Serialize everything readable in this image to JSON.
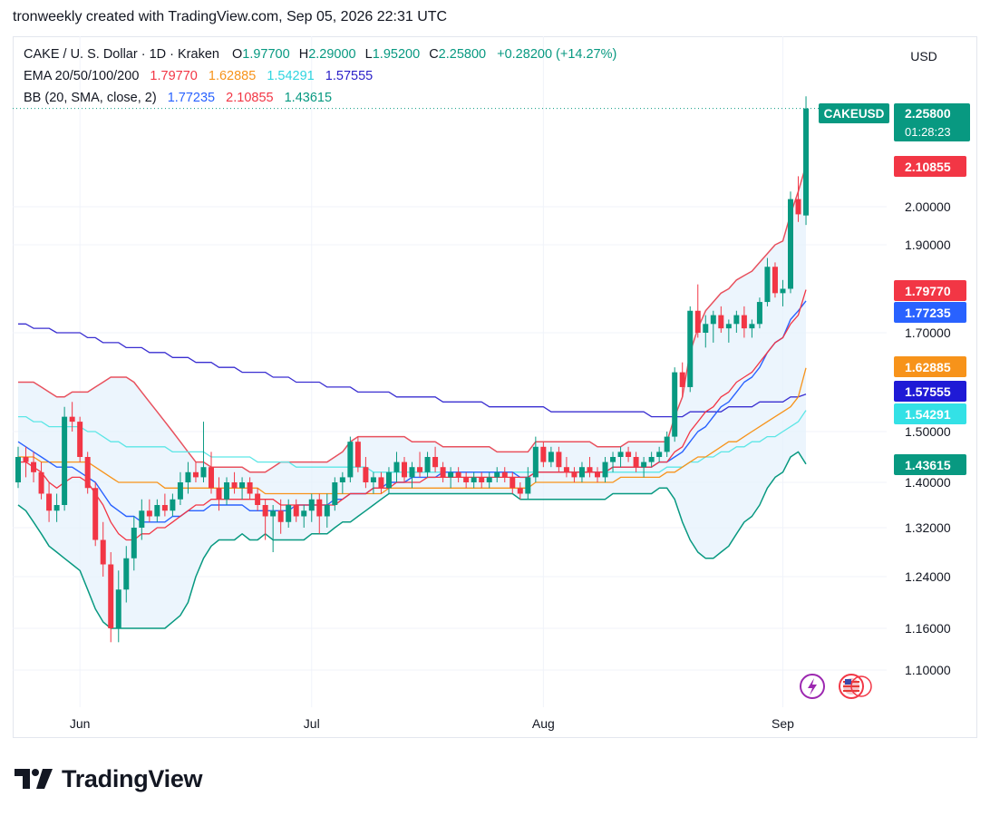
{
  "header": {
    "attribution": "tronweekly created with TradingView.com, Sep 05, 2026 22:31 UTC"
  },
  "legend": {
    "symbol_line": "CAKE / U. S. Dollar · 1D · Kraken",
    "ohlc": [
      {
        "label": "O",
        "value": "1.97700"
      },
      {
        "label": "H",
        "value": "2.29000"
      },
      {
        "label": "L",
        "value": "1.95200"
      },
      {
        "label": "C",
        "value": "2.25800"
      }
    ],
    "change": "+0.28200 (+14.27%)",
    "ema_label": "EMA 20/50/100/200",
    "ema_values": [
      "1.79770",
      "1.62885",
      "1.54291",
      "1.57555"
    ],
    "bb_label": "BB (20, SMA, close, 2)",
    "bb_values": [
      "1.77235",
      "2.10855",
      "1.43615"
    ]
  },
  "currency_button": "USD",
  "branding": "TradingView",
  "colors": {
    "up": "#089981",
    "down": "#f23645",
    "ema20": "#f23645",
    "ema50": "#f7931a",
    "ema100": "#5ce6e6",
    "ema200": "#3a2fd1",
    "bb_basis": "#2962ff",
    "bb_upper": "#e8515e",
    "bb_lower": "#089981",
    "bb_fill": "#e6f2fc"
  },
  "chart_data": {
    "type": "candlestick",
    "symbol": "CAKEUSD",
    "interval": "1D",
    "x_labels": [
      "Jun",
      "Jul",
      "Aug",
      "Sep"
    ],
    "y_ticks": [
      "2.00000",
      "1.90000",
      "1.70000",
      "1.50000",
      "1.40000",
      "1.32000",
      "1.24000",
      "1.16000",
      "1.10000"
    ],
    "ylim": [
      1.06,
      2.32
    ],
    "price_tags": [
      {
        "name": "CAKEUSD",
        "value": "2.25800",
        "sub": "01:28:23",
        "color": "#089981"
      },
      {
        "value": "2.10855",
        "color": "#f23645"
      },
      {
        "value": "1.79770",
        "color": "#f23645"
      },
      {
        "value": "1.77235",
        "color": "#2962ff"
      },
      {
        "value": "1.62885",
        "color": "#f7931a"
      },
      {
        "value": "1.57555",
        "color": "#1f1ad6"
      },
      {
        "value": "1.54291",
        "color": "#33e1e6"
      },
      {
        "value": "1.43615",
        "color": "#089981"
      }
    ],
    "last_price": 2.258,
    "ohlc": [
      [
        1.4,
        1.47,
        1.39,
        1.45
      ],
      [
        1.45,
        1.47,
        1.41,
        1.44
      ],
      [
        1.44,
        1.46,
        1.4,
        1.42
      ],
      [
        1.42,
        1.44,
        1.37,
        1.38
      ],
      [
        1.38,
        1.4,
        1.33,
        1.35
      ],
      [
        1.35,
        1.38,
        1.33,
        1.36
      ],
      [
        1.36,
        1.55,
        1.35,
        1.53
      ],
      [
        1.53,
        1.56,
        1.5,
        1.52
      ],
      [
        1.52,
        1.53,
        1.44,
        1.45
      ],
      [
        1.45,
        1.46,
        1.38,
        1.39
      ],
      [
        1.39,
        1.4,
        1.29,
        1.3
      ],
      [
        1.3,
        1.33,
        1.24,
        1.26
      ],
      [
        1.26,
        1.28,
        1.14,
        1.16
      ],
      [
        1.16,
        1.25,
        1.14,
        1.22
      ],
      [
        1.22,
        1.29,
        1.2,
        1.27
      ],
      [
        1.27,
        1.34,
        1.25,
        1.32
      ],
      [
        1.32,
        1.37,
        1.3,
        1.35
      ],
      [
        1.35,
        1.37,
        1.33,
        1.34
      ],
      [
        1.34,
        1.37,
        1.33,
        1.36
      ],
      [
        1.36,
        1.38,
        1.34,
        1.35
      ],
      [
        1.35,
        1.38,
        1.34,
        1.37
      ],
      [
        1.37,
        1.42,
        1.36,
        1.4
      ],
      [
        1.4,
        1.44,
        1.38,
        1.42
      ],
      [
        1.42,
        1.44,
        1.4,
        1.41
      ],
      [
        1.41,
        1.52,
        1.4,
        1.43
      ],
      [
        1.43,
        1.46,
        1.38,
        1.39
      ],
      [
        1.39,
        1.41,
        1.35,
        1.37
      ],
      [
        1.37,
        1.41,
        1.36,
        1.4
      ],
      [
        1.4,
        1.42,
        1.38,
        1.39
      ],
      [
        1.39,
        1.41,
        1.37,
        1.4
      ],
      [
        1.4,
        1.41,
        1.37,
        1.38
      ],
      [
        1.38,
        1.39,
        1.35,
        1.36
      ],
      [
        1.36,
        1.37,
        1.3,
        1.34
      ],
      [
        1.34,
        1.36,
        1.28,
        1.35
      ],
      [
        1.35,
        1.37,
        1.31,
        1.33
      ],
      [
        1.33,
        1.37,
        1.32,
        1.36
      ],
      [
        1.36,
        1.37,
        1.33,
        1.34
      ],
      [
        1.34,
        1.36,
        1.32,
        1.35
      ],
      [
        1.35,
        1.38,
        1.33,
        1.37
      ],
      [
        1.37,
        1.38,
        1.31,
        1.34
      ],
      [
        1.34,
        1.38,
        1.32,
        1.36
      ],
      [
        1.36,
        1.41,
        1.35,
        1.4
      ],
      [
        1.4,
        1.42,
        1.38,
        1.41
      ],
      [
        1.41,
        1.49,
        1.4,
        1.48
      ],
      [
        1.48,
        1.49,
        1.42,
        1.43
      ],
      [
        1.43,
        1.45,
        1.39,
        1.4
      ],
      [
        1.4,
        1.42,
        1.38,
        1.41
      ],
      [
        1.41,
        1.42,
        1.38,
        1.39
      ],
      [
        1.39,
        1.43,
        1.38,
        1.42
      ],
      [
        1.42,
        1.46,
        1.4,
        1.44
      ],
      [
        1.44,
        1.45,
        1.4,
        1.41
      ],
      [
        1.41,
        1.44,
        1.39,
        1.43
      ],
      [
        1.43,
        1.46,
        1.41,
        1.42
      ],
      [
        1.42,
        1.46,
        1.41,
        1.45
      ],
      [
        1.45,
        1.47,
        1.42,
        1.43
      ],
      [
        1.43,
        1.44,
        1.4,
        1.41
      ],
      [
        1.41,
        1.43,
        1.39,
        1.42
      ],
      [
        1.42,
        1.43,
        1.4,
        1.41
      ],
      [
        1.41,
        1.42,
        1.39,
        1.4
      ],
      [
        1.4,
        1.42,
        1.39,
        1.41
      ],
      [
        1.41,
        1.42,
        1.39,
        1.4
      ],
      [
        1.4,
        1.42,
        1.39,
        1.41
      ],
      [
        1.41,
        1.43,
        1.4,
        1.42
      ],
      [
        1.42,
        1.43,
        1.4,
        1.41
      ],
      [
        1.41,
        1.42,
        1.38,
        1.39
      ],
      [
        1.39,
        1.4,
        1.37,
        1.38
      ],
      [
        1.38,
        1.43,
        1.37,
        1.41
      ],
      [
        1.41,
        1.49,
        1.4,
        1.47
      ],
      [
        1.47,
        1.48,
        1.43,
        1.44
      ],
      [
        1.44,
        1.47,
        1.43,
        1.46
      ],
      [
        1.46,
        1.47,
        1.42,
        1.43
      ],
      [
        1.43,
        1.45,
        1.41,
        1.42
      ],
      [
        1.42,
        1.43,
        1.4,
        1.41
      ],
      [
        1.41,
        1.44,
        1.4,
        1.43
      ],
      [
        1.43,
        1.45,
        1.41,
        1.42
      ],
      [
        1.42,
        1.43,
        1.4,
        1.41
      ],
      [
        1.41,
        1.45,
        1.4,
        1.44
      ],
      [
        1.44,
        1.46,
        1.42,
        1.45
      ],
      [
        1.45,
        1.47,
        1.43,
        1.46
      ],
      [
        1.46,
        1.47,
        1.44,
        1.45
      ],
      [
        1.45,
        1.46,
        1.42,
        1.43
      ],
      [
        1.43,
        1.45,
        1.41,
        1.44
      ],
      [
        1.44,
        1.46,
        1.43,
        1.45
      ],
      [
        1.45,
        1.47,
        1.44,
        1.46
      ],
      [
        1.46,
        1.5,
        1.45,
        1.49
      ],
      [
        1.49,
        1.63,
        1.48,
        1.62
      ],
      [
        1.62,
        1.64,
        1.57,
        1.59
      ],
      [
        1.59,
        1.76,
        1.58,
        1.75
      ],
      [
        1.75,
        1.81,
        1.69,
        1.7
      ],
      [
        1.7,
        1.74,
        1.67,
        1.72
      ],
      [
        1.72,
        1.75,
        1.68,
        1.74
      ],
      [
        1.74,
        1.76,
        1.7,
        1.71
      ],
      [
        1.71,
        1.73,
        1.68,
        1.72
      ],
      [
        1.72,
        1.75,
        1.7,
        1.74
      ],
      [
        1.74,
        1.76,
        1.69,
        1.71
      ],
      [
        1.71,
        1.73,
        1.69,
        1.72
      ],
      [
        1.72,
        1.78,
        1.71,
        1.77
      ],
      [
        1.77,
        1.87,
        1.76,
        1.85
      ],
      [
        1.85,
        1.86,
        1.78,
        1.79
      ],
      [
        1.79,
        1.82,
        1.76,
        1.8
      ],
      [
        1.8,
        2.04,
        1.79,
        2.02
      ],
      [
        2.02,
        2.08,
        1.96,
        1.98
      ],
      [
        1.977,
        2.29,
        1.952,
        2.258
      ]
    ],
    "ema20": [
      1.44,
      1.44,
      1.43,
      1.42,
      1.4,
      1.39,
      1.4,
      1.41,
      1.41,
      1.4,
      1.38,
      1.36,
      1.33,
      1.31,
      1.3,
      1.3,
      1.31,
      1.31,
      1.32,
      1.32,
      1.33,
      1.34,
      1.35,
      1.36,
      1.36,
      1.37,
      1.37,
      1.37,
      1.37,
      1.37,
      1.37,
      1.37,
      1.37,
      1.37,
      1.36,
      1.36,
      1.36,
      1.36,
      1.36,
      1.36,
      1.36,
      1.36,
      1.37,
      1.38,
      1.38,
      1.38,
      1.39,
      1.39,
      1.39,
      1.4,
      1.4,
      1.4,
      1.4,
      1.41,
      1.41,
      1.41,
      1.41,
      1.41,
      1.41,
      1.41,
      1.41,
      1.41,
      1.41,
      1.41,
      1.41,
      1.41,
      1.41,
      1.42,
      1.42,
      1.42,
      1.42,
      1.42,
      1.42,
      1.42,
      1.42,
      1.42,
      1.42,
      1.43,
      1.43,
      1.43,
      1.43,
      1.43,
      1.43,
      1.44,
      1.44,
      1.46,
      1.47,
      1.5,
      1.52,
      1.54,
      1.55,
      1.57,
      1.58,
      1.6,
      1.61,
      1.62,
      1.64,
      1.66,
      1.68,
      1.69,
      1.72,
      1.74,
      1.7977
    ],
    "ema50": [
      1.45,
      1.45,
      1.45,
      1.44,
      1.44,
      1.44,
      1.44,
      1.44,
      1.44,
      1.44,
      1.43,
      1.42,
      1.41,
      1.4,
      1.4,
      1.4,
      1.4,
      1.4,
      1.4,
      1.39,
      1.39,
      1.39,
      1.39,
      1.39,
      1.39,
      1.39,
      1.39,
      1.39,
      1.39,
      1.39,
      1.39,
      1.39,
      1.38,
      1.38,
      1.38,
      1.38,
      1.38,
      1.38,
      1.38,
      1.38,
      1.38,
      1.38,
      1.38,
      1.38,
      1.38,
      1.38,
      1.38,
      1.38,
      1.39,
      1.39,
      1.39,
      1.39,
      1.39,
      1.39,
      1.39,
      1.39,
      1.39,
      1.39,
      1.39,
      1.39,
      1.39,
      1.39,
      1.39,
      1.39,
      1.39,
      1.39,
      1.39,
      1.4,
      1.4,
      1.4,
      1.4,
      1.4,
      1.4,
      1.4,
      1.4,
      1.4,
      1.4,
      1.4,
      1.41,
      1.41,
      1.41,
      1.41,
      1.41,
      1.41,
      1.42,
      1.42,
      1.43,
      1.44,
      1.45,
      1.45,
      1.46,
      1.47,
      1.48,
      1.48,
      1.49,
      1.5,
      1.51,
      1.52,
      1.53,
      1.54,
      1.55,
      1.57,
      1.62885
    ],
    "ema100": [
      1.53,
      1.53,
      1.52,
      1.52,
      1.51,
      1.51,
      1.51,
      1.51,
      1.51,
      1.5,
      1.5,
      1.49,
      1.48,
      1.48,
      1.47,
      1.47,
      1.47,
      1.47,
      1.47,
      1.47,
      1.46,
      1.46,
      1.46,
      1.46,
      1.46,
      1.45,
      1.45,
      1.45,
      1.45,
      1.45,
      1.45,
      1.44,
      1.44,
      1.44,
      1.44,
      1.44,
      1.43,
      1.43,
      1.43,
      1.43,
      1.43,
      1.43,
      1.43,
      1.43,
      1.43,
      1.43,
      1.42,
      1.42,
      1.42,
      1.42,
      1.42,
      1.42,
      1.42,
      1.42,
      1.42,
      1.42,
      1.42,
      1.42,
      1.42,
      1.42,
      1.42,
      1.42,
      1.42,
      1.42,
      1.42,
      1.42,
      1.42,
      1.42,
      1.42,
      1.42,
      1.42,
      1.42,
      1.42,
      1.42,
      1.42,
      1.42,
      1.42,
      1.42,
      1.42,
      1.42,
      1.42,
      1.42,
      1.42,
      1.42,
      1.43,
      1.43,
      1.43,
      1.44,
      1.44,
      1.45,
      1.45,
      1.46,
      1.46,
      1.47,
      1.47,
      1.48,
      1.48,
      1.49,
      1.49,
      1.5,
      1.51,
      1.52,
      1.54291
    ],
    "ema200": [
      1.72,
      1.72,
      1.71,
      1.71,
      1.71,
      1.7,
      1.7,
      1.7,
      1.7,
      1.69,
      1.69,
      1.68,
      1.68,
      1.68,
      1.67,
      1.67,
      1.67,
      1.66,
      1.66,
      1.66,
      1.65,
      1.65,
      1.65,
      1.64,
      1.64,
      1.64,
      1.63,
      1.63,
      1.63,
      1.62,
      1.62,
      1.62,
      1.62,
      1.61,
      1.61,
      1.61,
      1.6,
      1.6,
      1.6,
      1.6,
      1.59,
      1.59,
      1.59,
      1.59,
      1.58,
      1.58,
      1.58,
      1.58,
      1.58,
      1.57,
      1.57,
      1.57,
      1.57,
      1.57,
      1.57,
      1.56,
      1.56,
      1.56,
      1.56,
      1.56,
      1.56,
      1.55,
      1.55,
      1.55,
      1.55,
      1.55,
      1.55,
      1.55,
      1.55,
      1.54,
      1.54,
      1.54,
      1.54,
      1.54,
      1.54,
      1.54,
      1.54,
      1.54,
      1.54,
      1.54,
      1.54,
      1.54,
      1.53,
      1.53,
      1.53,
      1.53,
      1.53,
      1.54,
      1.54,
      1.54,
      1.54,
      1.54,
      1.55,
      1.55,
      1.55,
      1.55,
      1.56,
      1.56,
      1.56,
      1.56,
      1.57,
      1.57,
      1.57555
    ],
    "bb_basis": [
      1.48,
      1.47,
      1.46,
      1.45,
      1.44,
      1.43,
      1.43,
      1.43,
      1.42,
      1.41,
      1.4,
      1.38,
      1.36,
      1.35,
      1.34,
      1.34,
      1.33,
      1.33,
      1.33,
      1.33,
      1.34,
      1.34,
      1.35,
      1.35,
      1.35,
      1.36,
      1.36,
      1.36,
      1.36,
      1.36,
      1.35,
      1.35,
      1.35,
      1.35,
      1.35,
      1.35,
      1.36,
      1.36,
      1.36,
      1.36,
      1.36,
      1.37,
      1.37,
      1.38,
      1.38,
      1.38,
      1.39,
      1.39,
      1.4,
      1.4,
      1.4,
      1.41,
      1.41,
      1.41,
      1.41,
      1.42,
      1.42,
      1.42,
      1.42,
      1.42,
      1.42,
      1.42,
      1.42,
      1.42,
      1.42,
      1.41,
      1.41,
      1.42,
      1.42,
      1.42,
      1.42,
      1.42,
      1.42,
      1.42,
      1.42,
      1.42,
      1.42,
      1.43,
      1.43,
      1.43,
      1.43,
      1.43,
      1.43,
      1.44,
      1.44,
      1.45,
      1.46,
      1.48,
      1.5,
      1.51,
      1.53,
      1.55,
      1.56,
      1.58,
      1.6,
      1.61,
      1.63,
      1.66,
      1.68,
      1.69,
      1.73,
      1.75,
      1.77235
    ],
    "bb_upper": [
      1.6,
      1.6,
      1.6,
      1.59,
      1.58,
      1.57,
      1.57,
      1.58,
      1.58,
      1.58,
      1.59,
      1.6,
      1.61,
      1.61,
      1.61,
      1.6,
      1.58,
      1.56,
      1.54,
      1.52,
      1.5,
      1.48,
      1.46,
      1.44,
      1.44,
      1.43,
      1.43,
      1.43,
      1.43,
      1.43,
      1.42,
      1.42,
      1.42,
      1.43,
      1.44,
      1.44,
      1.44,
      1.44,
      1.44,
      1.44,
      1.44,
      1.45,
      1.46,
      1.48,
      1.49,
      1.49,
      1.49,
      1.49,
      1.49,
      1.49,
      1.49,
      1.48,
      1.48,
      1.48,
      1.48,
      1.47,
      1.47,
      1.47,
      1.47,
      1.47,
      1.47,
      1.47,
      1.46,
      1.46,
      1.46,
      1.46,
      1.46,
      1.48,
      1.48,
      1.48,
      1.48,
      1.48,
      1.48,
      1.48,
      1.48,
      1.47,
      1.47,
      1.47,
      1.47,
      1.48,
      1.48,
      1.48,
      1.48,
      1.48,
      1.48,
      1.53,
      1.57,
      1.66,
      1.71,
      1.75,
      1.77,
      1.79,
      1.8,
      1.82,
      1.83,
      1.84,
      1.86,
      1.88,
      1.9,
      1.91,
      1.98,
      2.04,
      2.10855
    ],
    "bb_lower": [
      1.36,
      1.35,
      1.33,
      1.31,
      1.29,
      1.28,
      1.27,
      1.26,
      1.25,
      1.22,
      1.19,
      1.17,
      1.16,
      1.16,
      1.16,
      1.16,
      1.16,
      1.16,
      1.16,
      1.16,
      1.17,
      1.18,
      1.2,
      1.24,
      1.27,
      1.29,
      1.3,
      1.3,
      1.3,
      1.31,
      1.3,
      1.3,
      1.31,
      1.3,
      1.3,
      1.3,
      1.3,
      1.3,
      1.31,
      1.31,
      1.31,
      1.32,
      1.33,
      1.33,
      1.34,
      1.35,
      1.36,
      1.37,
      1.38,
      1.38,
      1.38,
      1.38,
      1.38,
      1.38,
      1.38,
      1.38,
      1.38,
      1.38,
      1.38,
      1.38,
      1.38,
      1.38,
      1.38,
      1.38,
      1.38,
      1.37,
      1.37,
      1.37,
      1.37,
      1.37,
      1.37,
      1.37,
      1.37,
      1.37,
      1.37,
      1.37,
      1.37,
      1.38,
      1.38,
      1.38,
      1.38,
      1.38,
      1.38,
      1.39,
      1.39,
      1.37,
      1.33,
      1.3,
      1.28,
      1.27,
      1.27,
      1.28,
      1.29,
      1.31,
      1.33,
      1.34,
      1.36,
      1.39,
      1.41,
      1.42,
      1.45,
      1.46,
      1.43615
    ]
  }
}
